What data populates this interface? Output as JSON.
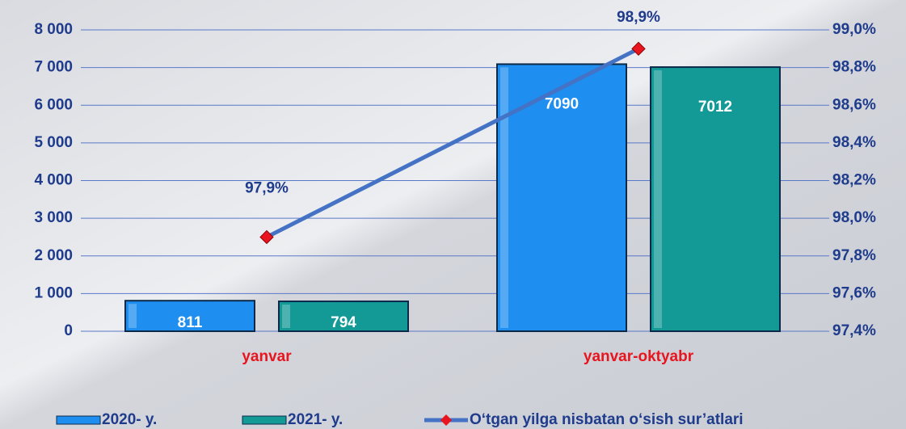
{
  "chart_data": {
    "type": "bar",
    "categories": [
      "yanvar",
      "yanvar-oktyabr"
    ],
    "series": [
      {
        "name": "2020- y.",
        "color": "#1e8ef0",
        "values": [
          811,
          7090
        ]
      },
      {
        "name": "2021- y.",
        "color": "#139a96",
        "values": [
          794,
          7012
        ]
      },
      {
        "name": "O‘tgan yilga nisbatan o‘sish sur’atlari",
        "color": "#4472c4",
        "marker_color": "#e8141e",
        "axis": "y2",
        "type": "line",
        "values": [
          97.9,
          98.9
        ],
        "value_labels": [
          "97,9%",
          "98,9%"
        ]
      }
    ],
    "ylim": [
      0,
      8000
    ],
    "yticks": [
      0,
      {
        "value": 1000,
        "label": "1 000"
      },
      {
        "value": 2000,
        "label": "2 000"
      },
      {
        "value": 3000,
        "label": "3 000"
      },
      {
        "value": 4000,
        "label": "4 000"
      },
      {
        "value": 5000,
        "label": "5 000"
      },
      {
        "value": 6000,
        "label": "6 000"
      },
      {
        "value": 7000,
        "label": "7 000"
      },
      {
        "value": 8000,
        "label": "8 000"
      }
    ],
    "y2lim": [
      97.4,
      99.0
    ],
    "y2ticks": [
      {
        "value": 97.4,
        "label": "97,4%"
      },
      {
        "value": 97.6,
        "label": "97,6%"
      },
      {
        "value": 97.8,
        "label": "97,8%"
      },
      {
        "value": 98.0,
        "label": "98,0%"
      },
      {
        "value": 98.2,
        "label": "98,2%"
      },
      {
        "value": 98.4,
        "label": "98,4%"
      },
      {
        "value": 98.6,
        "label": "98,6%"
      },
      {
        "value": 98.8,
        "label": "98,8%"
      },
      {
        "value": 99.0,
        "label": "99,0%"
      }
    ],
    "grid": true,
    "legend": "bottom"
  }
}
